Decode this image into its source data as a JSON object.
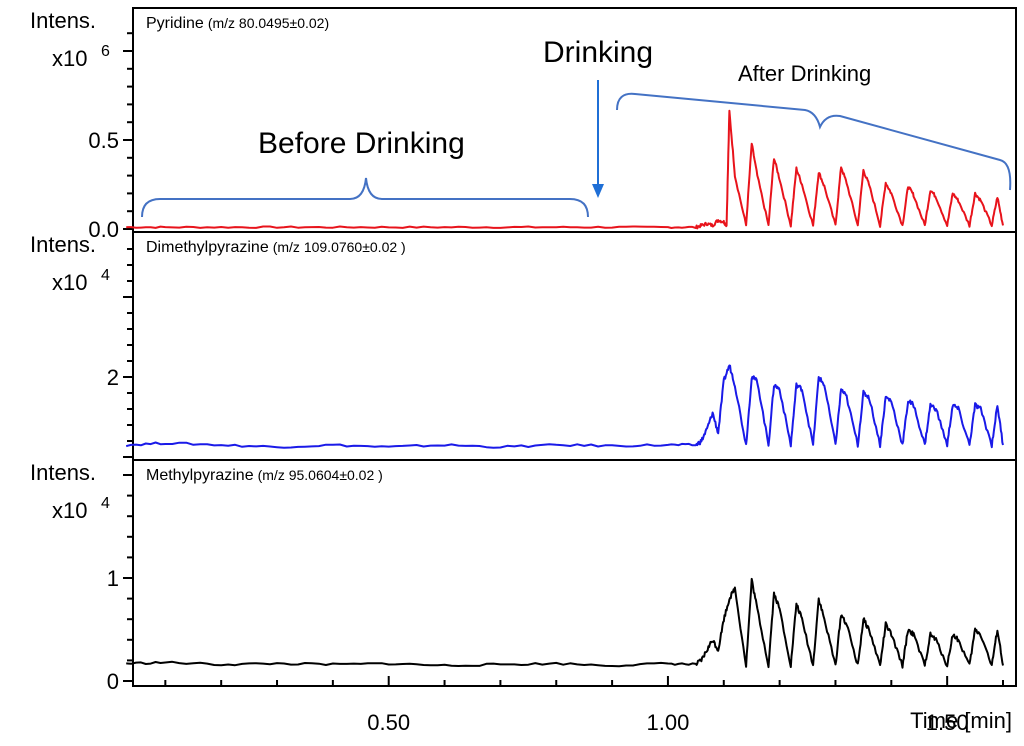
{
  "chart_data": [
    {
      "type": "line",
      "title": "Pyridine",
      "title_suffix": "(m/z 80.0495±0.02)",
      "ylabel": "Intens.",
      "yscale_label": "x10",
      "yscale_exp": "6",
      "yticks": [
        "0.0",
        "0.5"
      ],
      "ytick_values": [
        0.0,
        0.5
      ],
      "ylim": [
        0,
        0.72
      ],
      "xlim": [
        0.03,
        1.62
      ],
      "color": "#e8131b",
      "series": [
        {
          "x": [
            0.03,
            0.1,
            0.2,
            0.3,
            0.4,
            0.5,
            0.6,
            0.7,
            0.8,
            0.9,
            1.0,
            1.05,
            1.06,
            1.07,
            1.08,
            1.09,
            1.1,
            1.105,
            1.11,
            1.12,
            1.14,
            1.15,
            1.16,
            1.18,
            1.19,
            1.2,
            1.22,
            1.23,
            1.24,
            1.26,
            1.27,
            1.28,
            1.3,
            1.31,
            1.32,
            1.34,
            1.35,
            1.36,
            1.38,
            1.39,
            1.4,
            1.42,
            1.43,
            1.44,
            1.46,
            1.47,
            1.48,
            1.5,
            1.51,
            1.52,
            1.54,
            1.55,
            1.56,
            1.58,
            1.59,
            1.6
          ],
          "y": [
            0.01,
            0.01,
            0.01,
            0.01,
            0.01,
            0.01,
            0.01,
            0.01,
            0.01,
            0.01,
            0.01,
            0.01,
            0.02,
            0.03,
            0.02,
            0.05,
            0.04,
            0.02,
            0.66,
            0.3,
            0.02,
            0.48,
            0.3,
            0.02,
            0.4,
            0.28,
            0.02,
            0.34,
            0.25,
            0.02,
            0.32,
            0.24,
            0.02,
            0.35,
            0.26,
            0.02,
            0.33,
            0.25,
            0.02,
            0.26,
            0.2,
            0.02,
            0.24,
            0.19,
            0.02,
            0.22,
            0.18,
            0.02,
            0.2,
            0.16,
            0.02,
            0.2,
            0.16,
            0.02,
            0.18,
            0.02
          ]
        }
      ]
    },
    {
      "type": "line",
      "title": "Dimethylpyrazine",
      "title_suffix": "(m/z 109.0760±0.02 )",
      "ylabel": "Intens.",
      "yscale_label": "x10",
      "yscale_exp": "4",
      "yticks": [
        "2"
      ],
      "ytick_values": [
        2
      ],
      "ylim": [
        0,
        4.6
      ],
      "xlim": [
        0.03,
        1.62
      ],
      "color": "#1a1ae8",
      "series": [
        {
          "x": [
            0.03,
            0.1,
            0.2,
            0.3,
            0.4,
            0.5,
            0.6,
            0.7,
            0.8,
            0.9,
            1.0,
            1.05,
            1.06,
            1.07,
            1.08,
            1.09,
            1.1,
            1.11,
            1.12,
            1.14,
            1.15,
            1.16,
            1.18,
            1.19,
            1.2,
            1.22,
            1.23,
            1.24,
            1.26,
            1.27,
            1.28,
            1.3,
            1.31,
            1.32,
            1.34,
            1.35,
            1.36,
            1.38,
            1.39,
            1.4,
            1.42,
            1.43,
            1.44,
            1.46,
            1.47,
            1.48,
            1.5,
            1.51,
            1.52,
            1.54,
            1.55,
            1.56,
            1.58,
            1.59,
            1.6
          ],
          "y": [
            0.3,
            0.35,
            0.3,
            0.25,
            0.3,
            0.25,
            0.3,
            0.25,
            0.3,
            0.28,
            0.3,
            0.3,
            0.4,
            0.7,
            1.1,
            0.6,
            1.9,
            2.3,
            1.8,
            0.3,
            2.0,
            1.9,
            0.3,
            1.8,
            1.7,
            0.3,
            1.8,
            1.7,
            0.3,
            2.0,
            1.8,
            0.3,
            1.7,
            1.5,
            0.3,
            1.6,
            1.5,
            0.3,
            1.5,
            1.4,
            0.3,
            1.4,
            1.3,
            0.3,
            1.3,
            1.2,
            0.3,
            1.3,
            1.2,
            0.3,
            1.3,
            1.2,
            0.3,
            1.3,
            0.3
          ]
        }
      ]
    },
    {
      "type": "line",
      "title": "Methylpyrazine",
      "title_suffix": "(m/z 95.0604±0.02 )",
      "ylabel": "Intens.",
      "yscale_label": "x10",
      "yscale_exp": "4",
      "yticks": [
        "0",
        "1"
      ],
      "ytick_values": [
        0,
        1
      ],
      "ylim": [
        0,
        1.75
      ],
      "xlim": [
        0.03,
        1.62
      ],
      "color": "#000000",
      "series": [
        {
          "x": [
            0.03,
            0.1,
            0.2,
            0.3,
            0.4,
            0.5,
            0.6,
            0.7,
            0.8,
            0.9,
            1.0,
            1.05,
            1.06,
            1.07,
            1.08,
            1.09,
            1.1,
            1.11,
            1.12,
            1.14,
            1.15,
            1.16,
            1.18,
            1.19,
            1.2,
            1.22,
            1.23,
            1.24,
            1.26,
            1.27,
            1.28,
            1.3,
            1.31,
            1.32,
            1.34,
            1.35,
            1.36,
            1.38,
            1.39,
            1.4,
            1.42,
            1.43,
            1.44,
            1.46,
            1.47,
            1.48,
            1.5,
            1.51,
            1.52,
            1.54,
            1.55,
            1.56,
            1.58,
            1.59,
            1.6
          ],
          "y": [
            0.17,
            0.18,
            0.16,
            0.17,
            0.16,
            0.17,
            0.15,
            0.16,
            0.17,
            0.15,
            0.17,
            0.16,
            0.2,
            0.3,
            0.4,
            0.3,
            0.6,
            0.8,
            0.9,
            0.15,
            0.98,
            0.7,
            0.15,
            0.85,
            0.7,
            0.15,
            0.75,
            0.6,
            0.15,
            0.8,
            0.6,
            0.15,
            0.65,
            0.55,
            0.15,
            0.6,
            0.5,
            0.15,
            0.55,
            0.45,
            0.15,
            0.5,
            0.45,
            0.15,
            0.45,
            0.4,
            0.15,
            0.45,
            0.4,
            0.15,
            0.5,
            0.45,
            0.15,
            0.5,
            0.15
          ]
        }
      ]
    }
  ],
  "xaxis": {
    "ticks": [
      "0.50",
      "1.00",
      "1.50"
    ],
    "tick_values": [
      0.5,
      1.0,
      1.5
    ],
    "label": "Time [min]"
  },
  "annotations": {
    "before": "Before Drinking",
    "drinking": "Drinking",
    "after": "After Drinking"
  },
  "colors": {
    "brace": "#4472c4",
    "arrow": "#1f6fd6"
  }
}
